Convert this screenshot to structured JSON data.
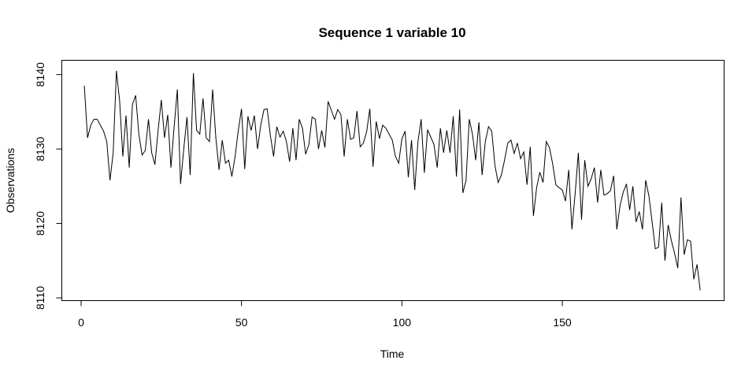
{
  "chart_data": {
    "type": "line",
    "title": "Sequence  1  variable  10",
    "xlabel": "Time",
    "ylabel": "Observations",
    "xlim": [
      1,
      192
    ],
    "ylim": [
      8110,
      8142
    ],
    "x_ticks": [
      0,
      50,
      100,
      150
    ],
    "y_ticks": [
      8110,
      8120,
      8130,
      8140
    ],
    "grid": false,
    "series": [
      {
        "values": [
          8138.5,
          8131.5,
          8133.2,
          8134,
          8134,
          8133.2,
          8132.4,
          8131,
          8125.8,
          8129.5,
          8140.5,
          8136.5,
          8129,
          8134.5,
          8127.5,
          8136,
          8137.2,
          8132,
          8129.2,
          8129.8,
          8134,
          8129.5,
          8127.9,
          8132.5,
          8136.6,
          8131.5,
          8134.6,
          8127.5,
          8133,
          8138,
          8125.3,
          8130,
          8134.3,
          8126.5,
          8140.2,
          8132.5,
          8132,
          8136.8,
          8131.5,
          8131,
          8138,
          8131.5,
          8127.2,
          8131.2,
          8128.1,
          8128.5,
          8126.3,
          8129,
          8132.5,
          8135.4,
          8127.3,
          8134.4,
          8132.5,
          8134.5,
          8130,
          8133.2,
          8135.3,
          8135.4,
          8131.8,
          8129,
          8133,
          8131.6,
          8132.4,
          8131,
          8128.3,
          8132.8,
          8128.5,
          8134,
          8132.8,
          8129.3,
          8130.6,
          8134.3,
          8134,
          8130,
          8132.5,
          8130.2,
          8136.4,
          8135.2,
          8134,
          8135.3,
          8134.6,
          8129,
          8134,
          8131.3,
          8131.5,
          8135.1,
          8130.3,
          8130.8,
          8132.3,
          8135.4,
          8127.6,
          8133.7,
          8131.4,
          8133.2,
          8132.8,
          8132,
          8131.2,
          8129,
          8128.1,
          8131.4,
          8132.4,
          8126.2,
          8131.2,
          8124.5,
          8131,
          8134,
          8126.8,
          8132.6,
          8131.6,
          8130.6,
          8127.5,
          8132.8,
          8129.5,
          8132.5,
          8129.5,
          8134.4,
          8126.3,
          8135.3,
          8124.1,
          8125.8,
          8134,
          8132,
          8128.5,
          8133.6,
          8126.5,
          8131,
          8133,
          8132.4,
          8127.8,
          8125.5,
          8126.5,
          8128.5,
          8130.8,
          8131.2,
          8129.4,
          8130.8,
          8128.7,
          8129.6,
          8125.2,
          8130.3,
          8121,
          8124.8,
          8126.9,
          8125.5,
          8131,
          8130.2,
          8128,
          8125.2,
          8124.8,
          8124.5,
          8123,
          8127.2,
          8119.2,
          8124,
          8129.5,
          8120.5,
          8128.5,
          8125,
          8126,
          8127.5,
          8122.8,
          8127.2,
          8123.8,
          8124,
          8124.4,
          8126.4,
          8119.2,
          8122.4,
          8124.2,
          8125.3,
          8121.8,
          8125,
          8120.2,
          8121.6,
          8119.2,
          8125.8,
          8123.7,
          8120.2,
          8116.6,
          8116.8,
          8122.8,
          8115,
          8119.8,
          8117.7,
          8116,
          8114,
          8123.5,
          8115.8,
          8117.8,
          8117.6,
          8112.5,
          8114.5,
          8111
        ]
      }
    ]
  }
}
